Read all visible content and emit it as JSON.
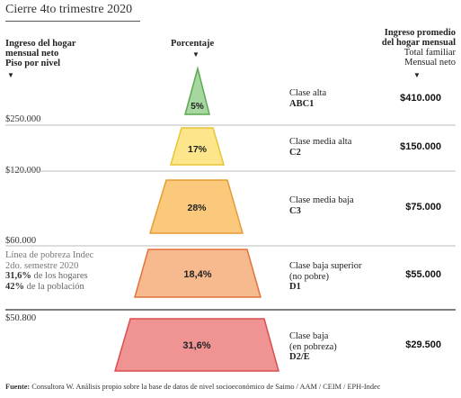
{
  "title": "Cierre 4to trimestre 2020",
  "headers": {
    "left_line1": "Ingreso del hogar",
    "left_line2": "mensual neto",
    "left_line3": "Piso por nivel",
    "center": "Porcentaje",
    "right_line1": "Ingreso promedio",
    "right_line2": "del hogar mensual",
    "right_line3": "Total familiar",
    "right_line4": "Mensual neto"
  },
  "thresholds": [
    "$250.000",
    "$120.000",
    "$60.000",
    "$50.800"
  ],
  "poverty_note": {
    "line1": "Línea de pobreza Indec",
    "line2": "2do. semestre 2020",
    "households_value": "31,6%",
    "households_text": " de los hogares",
    "population_value": "42%",
    "population_text": " de la población"
  },
  "footer": {
    "label": "Fuente:",
    "text": " Consultora W. Análisis propio sobre la base de datos de nivel socioeconómico de Saimo / AAM / CEIM / EPH-Indec"
  },
  "chart_data": {
    "type": "pyramid",
    "title": "Cierre 4to trimestre 2020",
    "levels": [
      {
        "class_line1": "Clase alta",
        "class_line2": "",
        "code": "ABC1",
        "percent_label": "5%",
        "percent": 5,
        "income": "$410.000",
        "fill": "#a6d7a0",
        "stroke": "#5aaa4e"
      },
      {
        "class_line1": "Clase media alta",
        "class_line2": "",
        "code": "C2",
        "percent_label": "17%",
        "percent": 17,
        "income": "$150.000",
        "fill": "#fde58c",
        "stroke": "#e8c433"
      },
      {
        "class_line1": "Clase media baja",
        "class_line2": "",
        "code": "C3",
        "percent_label": "28%",
        "percent": 28,
        "income": "$75.000",
        "fill": "#fbc97c",
        "stroke": "#e79b35"
      },
      {
        "class_line1": "Clase baja superior",
        "class_line2": "(no pobre)",
        "code": "D1",
        "percent_label": "18,4%",
        "percent": 18.4,
        "income": "$55.000",
        "fill": "#f7b98e",
        "stroke": "#e1733a"
      },
      {
        "class_line1": "Clase baja",
        "class_line2": "(en pobreza)",
        "code": "D2/E",
        "percent_label": "31,6%",
        "percent": 31.6,
        "income": "$29.500",
        "fill": "#ef9393",
        "stroke": "#d94f4f"
      }
    ]
  }
}
